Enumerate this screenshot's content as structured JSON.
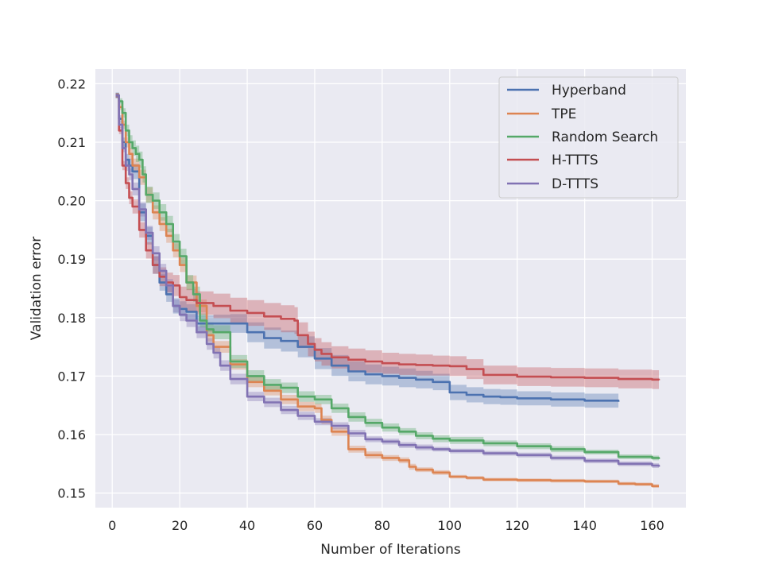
{
  "chart_data": {
    "type": "line",
    "title": "",
    "xlabel": "Number of Iterations",
    "ylabel": "Validation error",
    "xlim": [
      -5,
      170
    ],
    "ylim": [
      0.1475,
      0.2225
    ],
    "xticks": [
      0,
      20,
      40,
      60,
      80,
      100,
      120,
      140,
      160
    ],
    "yticks": [
      0.15,
      0.16,
      0.17,
      0.18,
      0.19,
      0.2,
      0.21,
      0.22
    ],
    "ytick_labels": [
      "0.15",
      "0.16",
      "0.17",
      "0.18",
      "0.19",
      "0.20",
      "0.21",
      "0.22"
    ],
    "grid": true,
    "legend_position": "top-right",
    "series": [
      {
        "name": "Hyperband",
        "color": "#4c72b0",
        "x": [
          1,
          2,
          3,
          4,
          5,
          6,
          8,
          10,
          12,
          14,
          16,
          18,
          20,
          22,
          25,
          30,
          35,
          40,
          45,
          50,
          55,
          60,
          65,
          70,
          75,
          80,
          85,
          90,
          95,
          100,
          105,
          110,
          115,
          120,
          130,
          140,
          150
        ],
        "y": [
          0.218,
          0.214,
          0.21,
          0.207,
          0.206,
          0.205,
          0.198,
          0.194,
          0.189,
          0.186,
          0.184,
          0.182,
          0.1815,
          0.181,
          0.179,
          0.179,
          0.179,
          0.1775,
          0.1765,
          0.176,
          0.175,
          0.173,
          0.1718,
          0.1708,
          0.1703,
          0.17,
          0.1697,
          0.1694,
          0.169,
          0.1672,
          0.1668,
          0.1665,
          0.1664,
          0.1662,
          0.166,
          0.1658,
          0.1656
        ],
        "band": [
          0.0005,
          0.0006,
          0.0008,
          0.001,
          0.0012,
          0.0013,
          0.0015,
          0.0015,
          0.0015,
          0.0014,
          0.0013,
          0.0013,
          0.0013,
          0.0013,
          0.0014,
          0.0015,
          0.0016,
          0.0017,
          0.0018,
          0.0018,
          0.0018,
          0.0018,
          0.0018,
          0.0017,
          0.0017,
          0.0016,
          0.0016,
          0.0015,
          0.0014,
          0.0013,
          0.0013,
          0.0013,
          0.0013,
          0.0012,
          0.0012,
          0.0012,
          0.0012
        ]
      },
      {
        "name": "TPE",
        "color": "#dd8452",
        "x": [
          1,
          2,
          3,
          4,
          5,
          6,
          8,
          10,
          12,
          14,
          16,
          18,
          20,
          22,
          25,
          28,
          30,
          35,
          40,
          45,
          50,
          55,
          60,
          62,
          65,
          70,
          75,
          80,
          85,
          88,
          90,
          95,
          100,
          105,
          110,
          120,
          130,
          140,
          150,
          155,
          160,
          162
        ],
        "y": [
          0.218,
          0.216,
          0.213,
          0.21,
          0.208,
          0.206,
          0.204,
          0.201,
          0.198,
          0.196,
          0.194,
          0.1915,
          0.189,
          0.186,
          0.182,
          0.177,
          0.175,
          0.172,
          0.169,
          0.1675,
          0.166,
          0.1648,
          0.1645,
          0.1625,
          0.1605,
          0.1575,
          0.1565,
          0.156,
          0.1556,
          0.1545,
          0.154,
          0.1535,
          0.1528,
          0.1526,
          0.1523,
          0.1522,
          0.1521,
          0.152,
          0.1516,
          0.1515,
          0.1512,
          0.1512
        ],
        "band": [
          0.0004,
          0.0005,
          0.0007,
          0.0009,
          0.001,
          0.0012,
          0.0013,
          0.0013,
          0.0012,
          0.0012,
          0.0012,
          0.0012,
          0.0012,
          0.0012,
          0.0011,
          0.0011,
          0.001,
          0.0009,
          0.0009,
          0.0008,
          0.0008,
          0.0008,
          0.0008,
          0.0007,
          0.0007,
          0.0006,
          0.0006,
          0.0005,
          0.0005,
          0.0005,
          0.0004,
          0.0004,
          0.0003,
          0.0003,
          0.0003,
          0.0003,
          0.0003,
          0.0003,
          0.0003,
          0.0003,
          0.0003,
          0.0003
        ]
      },
      {
        "name": "Random Search",
        "color": "#55a868",
        "x": [
          1,
          2,
          3,
          4,
          5,
          6,
          7,
          8,
          9,
          10,
          12,
          14,
          16,
          18,
          20,
          22,
          24,
          26,
          28,
          30,
          35,
          40,
          45,
          50,
          55,
          60,
          65,
          70,
          75,
          80,
          85,
          90,
          95,
          100,
          110,
          120,
          130,
          140,
          150,
          160,
          162
        ],
        "y": [
          0.218,
          0.217,
          0.215,
          0.212,
          0.21,
          0.209,
          0.208,
          0.207,
          0.2045,
          0.201,
          0.2,
          0.198,
          0.196,
          0.193,
          0.1905,
          0.186,
          0.184,
          0.1795,
          0.178,
          0.1775,
          0.1725,
          0.17,
          0.1685,
          0.168,
          0.1665,
          0.166,
          0.1645,
          0.163,
          0.162,
          0.1612,
          0.1605,
          0.1598,
          0.1593,
          0.159,
          0.1585,
          0.158,
          0.1575,
          0.157,
          0.1562,
          0.156,
          0.1558
        ],
        "band": [
          0.0004,
          0.0005,
          0.0008,
          0.001,
          0.0012,
          0.0013,
          0.0014,
          0.0014,
          0.0014,
          0.0014,
          0.0014,
          0.0014,
          0.0014,
          0.0013,
          0.0013,
          0.0013,
          0.0013,
          0.0012,
          0.0012,
          0.0012,
          0.0011,
          0.001,
          0.001,
          0.0009,
          0.0009,
          0.0008,
          0.0008,
          0.0008,
          0.0007,
          0.0007,
          0.0006,
          0.0006,
          0.0006,
          0.0006,
          0.0005,
          0.0005,
          0.0005,
          0.0004,
          0.0004,
          0.0004,
          0.0004
        ]
      },
      {
        "name": "H-TTTS",
        "color": "#c44e52",
        "x": [
          1,
          2,
          3,
          4,
          5,
          6,
          8,
          10,
          12,
          14,
          16,
          18,
          20,
          22,
          25,
          30,
          35,
          40,
          45,
          50,
          54,
          55,
          58,
          60,
          62,
          65,
          70,
          75,
          80,
          85,
          90,
          95,
          100,
          105,
          110,
          120,
          130,
          140,
          150,
          160,
          162
        ],
        "y": [
          0.218,
          0.212,
          0.206,
          0.203,
          0.2005,
          0.199,
          0.195,
          0.1915,
          0.189,
          0.187,
          0.186,
          0.1855,
          0.1835,
          0.183,
          0.1825,
          0.182,
          0.1812,
          0.1808,
          0.1802,
          0.1798,
          0.1795,
          0.177,
          0.1755,
          0.1745,
          0.1738,
          0.1732,
          0.1728,
          0.1725,
          0.1722,
          0.172,
          0.1719,
          0.1718,
          0.1717,
          0.1712,
          0.1702,
          0.1699,
          0.1698,
          0.1697,
          0.1695,
          0.1694,
          0.1693
        ],
        "band": [
          0.0004,
          0.0006,
          0.0008,
          0.001,
          0.0011,
          0.0012,
          0.0013,
          0.0014,
          0.0015,
          0.0016,
          0.0017,
          0.0018,
          0.0018,
          0.0019,
          0.002,
          0.0021,
          0.0022,
          0.0022,
          0.0023,
          0.0023,
          0.0023,
          0.0022,
          0.0021,
          0.002,
          0.002,
          0.0019,
          0.0019,
          0.0019,
          0.0018,
          0.0018,
          0.0018,
          0.0017,
          0.0017,
          0.0017,
          0.0016,
          0.0016,
          0.0016,
          0.0016,
          0.0016,
          0.0016,
          0.0016
        ]
      },
      {
        "name": "D-TTTS",
        "color": "#8172b3",
        "x": [
          1,
          2,
          3,
          4,
          5,
          6,
          8,
          10,
          12,
          14,
          16,
          18,
          20,
          22,
          25,
          28,
          30,
          32,
          35,
          40,
          45,
          50,
          55,
          60,
          65,
          70,
          75,
          80,
          85,
          90,
          95,
          100,
          110,
          120,
          130,
          140,
          150,
          160,
          162
        ],
        "y": [
          0.218,
          0.213,
          0.209,
          0.206,
          0.2045,
          0.202,
          0.1985,
          0.1945,
          0.191,
          0.188,
          0.1855,
          0.182,
          0.1805,
          0.1795,
          0.1775,
          0.1755,
          0.174,
          0.1718,
          0.1695,
          0.1665,
          0.1655,
          0.1642,
          0.1632,
          0.1622,
          0.1615,
          0.1602,
          0.1592,
          0.1588,
          0.1582,
          0.1578,
          0.1575,
          0.1572,
          0.1568,
          0.1565,
          0.156,
          0.1555,
          0.155,
          0.1547,
          0.1545
        ],
        "band": [
          0.0004,
          0.0005,
          0.0007,
          0.0009,
          0.001,
          0.0011,
          0.0012,
          0.0012,
          0.0012,
          0.0012,
          0.0011,
          0.0011,
          0.0011,
          0.0011,
          0.001,
          0.001,
          0.001,
          0.0009,
          0.0009,
          0.0008,
          0.0008,
          0.0007,
          0.0007,
          0.0006,
          0.0006,
          0.0006,
          0.0005,
          0.0005,
          0.0005,
          0.0005,
          0.0004,
          0.0004,
          0.0004,
          0.0004,
          0.0004,
          0.0004,
          0.0004,
          0.0004,
          0.0004
        ]
      }
    ]
  }
}
